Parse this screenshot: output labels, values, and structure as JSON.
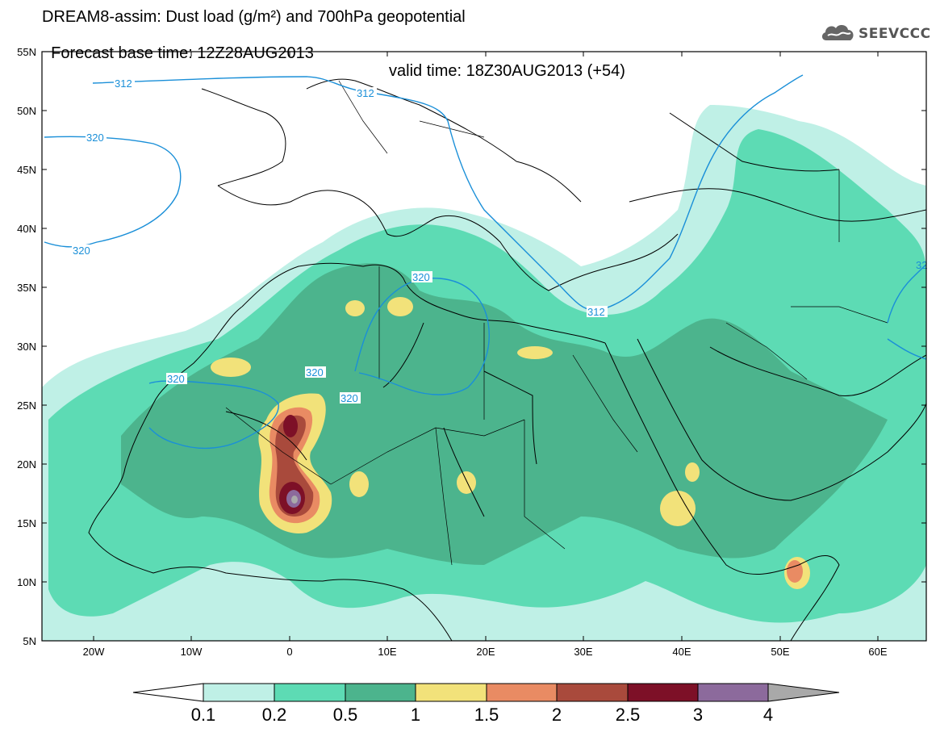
{
  "header": {
    "title_line1": "DREAM8-assim: Dust load (g/m²) and 700hPa geopotential",
    "title_line2_left": "Forecast base time: 12Z28AUG2013",
    "title_line2_right": "valid time: 18Z30AUG2013 (+54)"
  },
  "logo": {
    "text": "SEEVCCC",
    "icon": "cloud-icon"
  },
  "map": {
    "lat_labels": [
      "55N",
      "50N",
      "45N",
      "40N",
      "35N",
      "30N",
      "25N",
      "20N",
      "15N",
      "10N",
      "5N"
    ],
    "lon_labels": [
      "20W",
      "10W",
      "0",
      "10E",
      "20E",
      "30E",
      "40E",
      "50E",
      "60E"
    ],
    "contour_labels": [
      "312",
      "312",
      "312",
      "320",
      "320",
      "320",
      "320",
      "320",
      "320",
      "32"
    ],
    "colors": {
      "c1": "#bff0e6",
      "c2": "#5ddbb4",
      "c3": "#4cb48d",
      "c4": "#f2e27a",
      "c5": "#e98b63",
      "c6": "#a94a3c",
      "c7": "#7d1027",
      "c8": "#8c6a9c",
      "contour": "#1a8fd8"
    }
  },
  "colorbar": {
    "labels": [
      "0.1",
      "0.2",
      "0.5",
      "1",
      "1.5",
      "2",
      "2.5",
      "3",
      "4"
    ],
    "colors": [
      "#bff0e6",
      "#5ddbb4",
      "#4cb48d",
      "#f2e27a",
      "#e98b63",
      "#a94a3c",
      "#7d1027",
      "#8c6a9c"
    ]
  }
}
